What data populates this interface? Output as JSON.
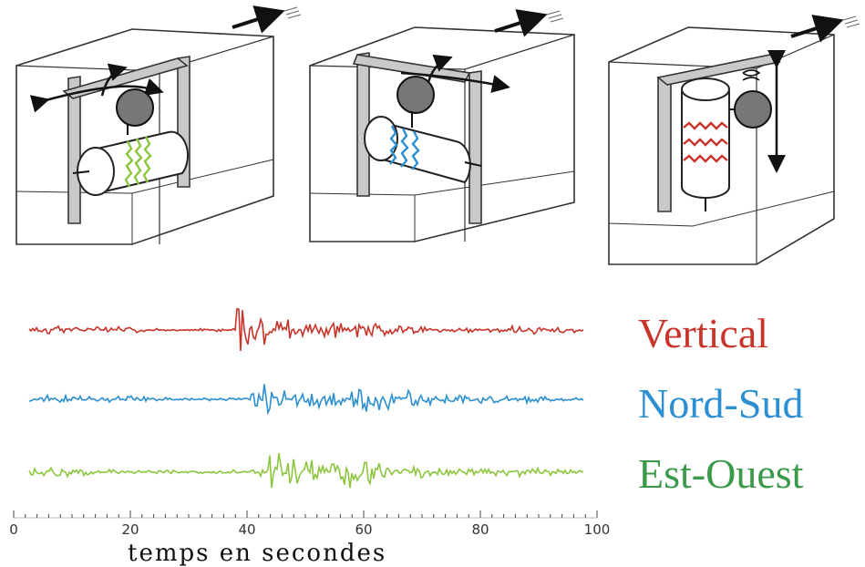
{
  "colors": {
    "vertical": "#c8342a",
    "nord_sud": "#2b8fd1",
    "est_ouest": "#3a9a4a",
    "green_trace": "#8cc63f",
    "frame": "#333333",
    "pillar_fill": "#c9c9c9",
    "mass_fill": "#777777"
  },
  "icons": [
    "direction-arrow-icon",
    "rotation-arrow-icon",
    "double-arrow-icon",
    "spring-icon",
    "mass-icon",
    "drum-icon"
  ],
  "labels": {
    "vertical": "Vertical",
    "nord_sud": "Nord-Sud",
    "est_ouest": "Est-Ouest"
  },
  "axis": {
    "title": "temps en secondes",
    "ticks": [
      "0",
      "20",
      "40",
      "60",
      "80",
      "100"
    ]
  },
  "chart_data": {
    "type": "line",
    "x_range": [
      0,
      100
    ],
    "xlabel": "temps en secondes",
    "series": [
      {
        "name": "Vertical"
      },
      {
        "name": "Nord-Sud"
      },
      {
        "name": "Est-Ouest"
      }
    ]
  }
}
